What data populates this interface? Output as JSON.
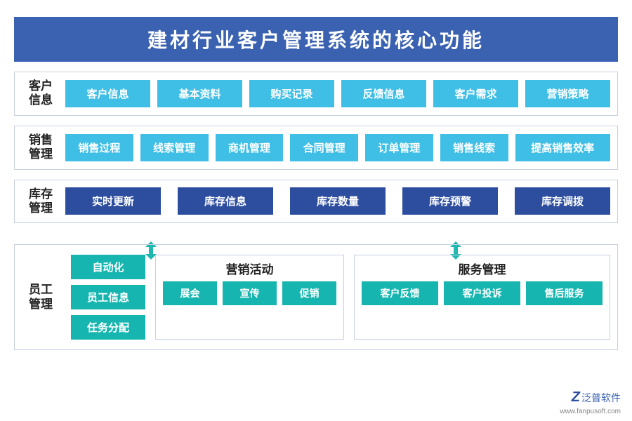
{
  "colors": {
    "title_bg": "#3a62b1",
    "section_border": "#c7d0e0",
    "btn_light": "#3fbee6",
    "btn_dark": "#2d4e9f",
    "btn_teal": "#16b5af",
    "arrow": "#1fb8b0",
    "text": "#222222",
    "white": "#ffffff"
  },
  "fontsizes": {
    "title": 28,
    "section_label": 17,
    "btn": 15,
    "subgroup_title": 17,
    "sub_btn": 14
  },
  "title": "建材行业客户管理系统的核心功能",
  "sections": {
    "customer": {
      "label": "客户\n信息",
      "style": "light",
      "items": [
        "客户信息",
        "基本资料",
        "购买记录",
        "反馈信息",
        "客户需求",
        "营销策略"
      ]
    },
    "sales": {
      "label": "销售\n管理",
      "style": "light",
      "items": [
        "销售过程",
        "线索管理",
        "商机管理",
        "合同管理",
        "订单管理",
        "销售线索",
        "提高销售效率"
      ]
    },
    "inventory": {
      "label": "库存\n管理",
      "style": "dark",
      "items": [
        "实时更新",
        "库存信息",
        "库存数量",
        "库存预警",
        "库存调拨"
      ]
    }
  },
  "employee": {
    "label": "员工\n管理",
    "left_items": [
      "自动化",
      "员工信息",
      "任务分配"
    ],
    "marketing": {
      "title": "营销活动",
      "items": [
        "展会",
        "宣传",
        "促销"
      ]
    },
    "service": {
      "title": "服务管理",
      "items": [
        "客户反馈",
        "客户投诉",
        "售后服务"
      ]
    }
  },
  "logo": {
    "brand_char": "Z",
    "brand": "泛普软件",
    "url": "www.fanpusoft.com"
  }
}
